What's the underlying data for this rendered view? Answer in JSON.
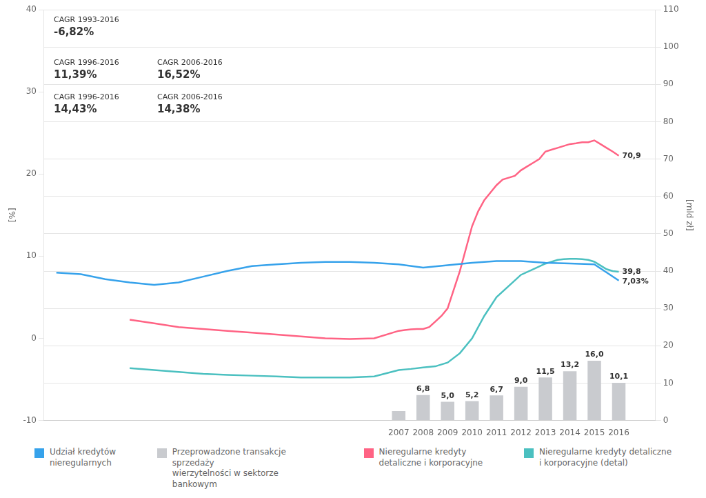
{
  "chart_data": {
    "type": "line",
    "y_label": "[%]",
    "y2_label": "[mld zł]",
    "xlim": [
      1992.5,
      2017.5
    ],
    "xticks": [
      2007,
      2008,
      2009,
      2010,
      2011,
      2012,
      2013,
      2014,
      2015,
      2016
    ],
    "ylim": [
      -10,
      40
    ],
    "yticks": [
      -10,
      0,
      10,
      20,
      30,
      40
    ],
    "y2lim": [
      0,
      110
    ],
    "y2ticks": [
      0,
      10,
      20,
      30,
      40,
      50,
      60,
      70,
      80,
      90,
      100,
      110
    ],
    "grid": true,
    "data_labels": true,
    "annotations": [
      "CAGR 1993-2016",
      "-6,82%",
      "CAGR 1996-2016",
      "11,39%",
      "CAGR 2006-2016",
      "16,52%",
      "CAGR 1996-2016",
      "14,43%",
      "CAGR 2006-2016",
      "14,38%"
    ],
    "series": [
      {
        "name": "Udział kredytów\nnieregularnych",
        "type": "line",
        "axis": "y",
        "color": "#36a2eb",
        "x": [
          1993,
          1994,
          1995,
          1996,
          1997,
          1998,
          1999,
          2000,
          2001,
          2002,
          2003,
          2004,
          2005,
          2006,
          2007,
          2008,
          2009,
          2010,
          2011,
          2012,
          2013,
          2014,
          2015,
          2016
        ],
        "values": [
          8.0,
          7.8,
          7.2,
          6.8,
          6.5,
          6.8,
          7.5,
          8.2,
          8.8,
          9.0,
          9.2,
          9.3,
          9.3,
          9.2,
          9.0,
          8.6,
          8.9,
          9.2,
          9.4,
          9.4,
          9.2,
          9.1,
          9.0,
          7.03
        ],
        "value_labels": [
          null,
          null,
          null,
          null,
          null,
          null,
          null,
          null,
          null,
          null,
          null,
          null,
          null,
          null,
          null,
          null,
          null,
          null,
          null,
          null,
          null,
          null,
          null,
          "7,03%"
        ]
      },
      {
        "name": "Przeprowadzone transakcje sprzedaży\nwierzytelności w sektorze bankowym",
        "type": "bar",
        "axis": "y2",
        "color": "#c9cbcf",
        "x": [
          2007,
          2008,
          2009,
          2010,
          2011,
          2012,
          2013,
          2014,
          2015,
          2016
        ],
        "values": [
          2.5,
          6.8,
          5.0,
          5.2,
          6.7,
          9.0,
          11.5,
          13.2,
          16.0,
          10.1
        ],
        "value_labels": [
          null,
          "6,8",
          "5,0",
          "5,2",
          "6,7",
          "9,0",
          "11,5",
          "13,2",
          "16,0",
          "10,1"
        ]
      },
      {
        "name": "Nieregularne kredyty\ndetaliczne i korporacyjne",
        "type": "line",
        "axis": "y2",
        "color": "#ff6384",
        "x": [
          1996,
          1997,
          1998,
          1999,
          2000,
          2001,
          2002,
          2003,
          2004,
          2005,
          2006,
          2007,
          2007.25,
          2007.5,
          2007.75,
          2008,
          2008.25,
          2008.5,
          2008.75,
          2009,
          2009.25,
          2009.5,
          2009.75,
          2010,
          2010.25,
          2010.5,
          2010.75,
          2011,
          2011.25,
          2011.5,
          2011.75,
          2012,
          2012.25,
          2012.5,
          2012.75,
          2013,
          2013.25,
          2013.5,
          2013.75,
          2014,
          2014.25,
          2014.5,
          2014.75,
          2015,
          2015.25,
          2015.5,
          2015.75,
          2016
        ],
        "values": [
          27.0,
          26.0,
          25.0,
          24.5,
          24.0,
          23.5,
          23.0,
          22.5,
          22.0,
          21.8,
          22.0,
          24.0,
          24.2,
          24.4,
          24.5,
          24.5,
          25.0,
          26.5,
          28.0,
          30.0,
          35.0,
          40.0,
          46.0,
          52.0,
          56.0,
          59.0,
          61.0,
          63.0,
          64.5,
          65.0,
          65.5,
          67.0,
          68.0,
          69.0,
          70.0,
          72.0,
          72.5,
          73.0,
          73.5,
          74.0,
          74.2,
          74.5,
          74.5,
          75.0,
          74.0,
          73.0,
          72.0,
          70.9
        ],
        "value_labels": [
          null,
          null,
          null,
          null,
          null,
          null,
          null,
          null,
          null,
          null,
          null,
          null,
          null,
          null,
          null,
          null,
          null,
          null,
          null,
          null,
          null,
          null,
          null,
          null,
          null,
          null,
          null,
          null,
          null,
          null,
          null,
          null,
          null,
          null,
          null,
          null,
          null,
          null,
          null,
          null,
          null,
          null,
          null,
          null,
          null,
          null,
          null,
          "70,9"
        ]
      },
      {
        "name": "Nieregularne kredyty detaliczne\ni korporacyjne (detal)",
        "type": "line",
        "axis": "y2",
        "color": "#4bc0c0",
        "x": [
          1996,
          1997,
          1998,
          1999,
          2000,
          2001,
          2002,
          2003,
          2004,
          2005,
          2006,
          2007,
          2007.5,
          2008,
          2008.5,
          2009,
          2009.5,
          2010,
          2010.5,
          2011,
          2011.5,
          2012,
          2012.5,
          2013,
          2013.25,
          2013.5,
          2013.75,
          2014,
          2014.25,
          2014.5,
          2014.75,
          2015,
          2015.25,
          2015.5,
          2015.75,
          2016
        ],
        "values": [
          14.0,
          13.5,
          13.0,
          12.5,
          12.2,
          12.0,
          11.8,
          11.5,
          11.5,
          11.5,
          11.8,
          13.5,
          13.8,
          14.2,
          14.5,
          15.5,
          18.0,
          22.0,
          28.0,
          33.0,
          36.0,
          39.0,
          40.5,
          42.0,
          42.5,
          43.0,
          43.2,
          43.3,
          43.3,
          43.2,
          43.0,
          42.5,
          41.5,
          40.5,
          40.0,
          39.8
        ],
        "value_labels": [
          null,
          null,
          null,
          null,
          null,
          null,
          null,
          null,
          null,
          null,
          null,
          null,
          null,
          null,
          null,
          null,
          null,
          null,
          null,
          null,
          null,
          null,
          null,
          null,
          null,
          null,
          null,
          null,
          null,
          null,
          null,
          null,
          null,
          null,
          null,
          "39,8"
        ]
      }
    ]
  }
}
